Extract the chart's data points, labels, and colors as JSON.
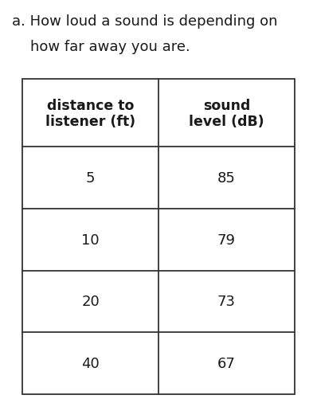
{
  "title_line1": "a. How loud a sound is depending on",
  "title_line2": "    how far away you are.",
  "col1_header_line1": "distance to",
  "col1_header_line2": "listener (ft)",
  "col2_header_line1": "sound",
  "col2_header_line2": "level (dB)",
  "col1_values": [
    "5",
    "10",
    "20",
    "40"
  ],
  "col2_values": [
    "85",
    "79",
    "73",
    "67"
  ],
  "background_color": "#ffffff",
  "text_color": "#1a1a1a",
  "line_color": "#333333",
  "title_fontsize": 13.0,
  "header_fontsize": 12.5,
  "data_fontsize": 13.0,
  "figsize": [
    3.93,
    5.02
  ],
  "dpi": 100
}
